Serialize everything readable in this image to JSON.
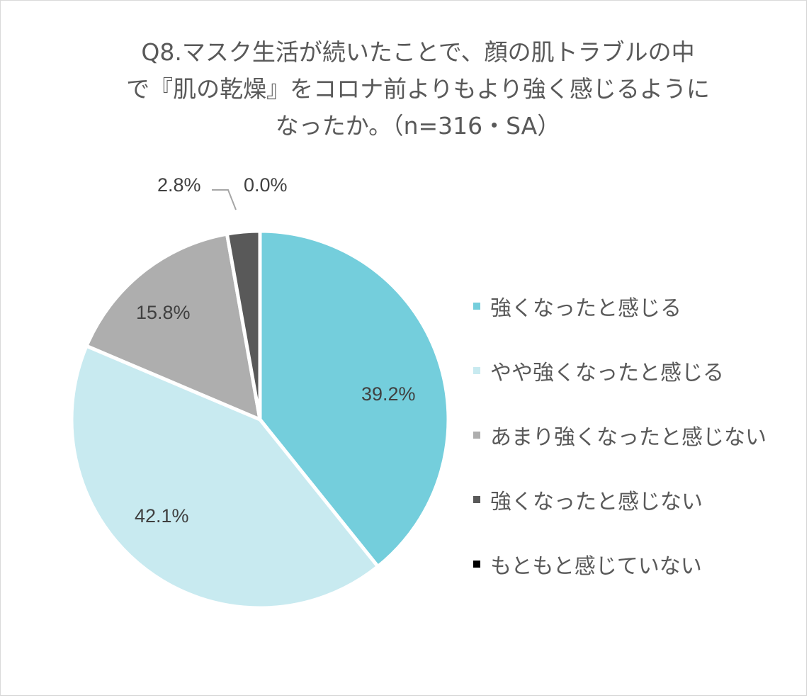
{
  "title": {
    "line1": "Q8.マスク生活が続いたことで、顔の肌トラブルの中",
    "line2": "で『肌の乾燥』をコロナ前よりもより強く感じるように",
    "line3": "なったか。（n=316・SA）"
  },
  "labels": {
    "s0": "39.2%",
    "s1": "42.1%",
    "s2": "15.8%",
    "s3": "2.8%",
    "s4": "0.0%"
  },
  "legend": [
    {
      "label": "強くなったと感じる",
      "color": "#74CEDC"
    },
    {
      "label": "やや強くなったと感じる",
      "color": "#C8EAF0"
    },
    {
      "label": "あまり強くなったと感じない",
      "color": "#AEAEAE"
    },
    {
      "label": "強くなったと感じない",
      "color": "#595959"
    },
    {
      "label": "もともと感じていない",
      "color": "#000000"
    }
  ],
  "chart_data": {
    "type": "pie",
    "title": "Q8.マスク生活が続いたことで、顔の肌トラブルの中で『肌の乾燥』をコロナ前よりもより強く感じるようになったか。（n=316・SA）",
    "categories": [
      "強くなったと感じる",
      "やや強くなったと感じる",
      "あまり強くなったと感じない",
      "強くなったと感じない",
      "もともと感じていない"
    ],
    "values": [
      39.2,
      42.1,
      15.8,
      2.8,
      0.0
    ],
    "unit": "%",
    "colors": [
      "#74CEDC",
      "#C8EAF0",
      "#AEAEAE",
      "#595959",
      "#000000"
    ],
    "start_angle": "12 o'clock",
    "direction": "clockwise",
    "legend_position": "right",
    "n": 316
  }
}
